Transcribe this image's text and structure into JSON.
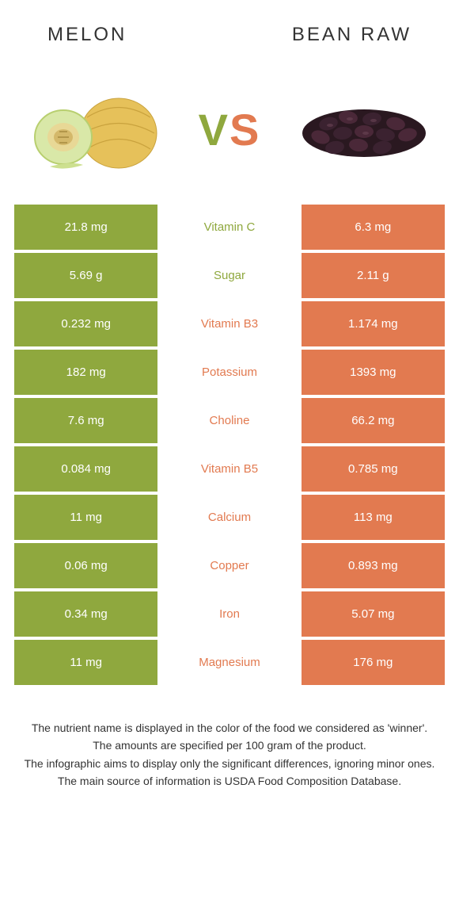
{
  "colors": {
    "left": "#8fa83e",
    "right": "#e27a50",
    "bg": "#ffffff",
    "text": "#333333"
  },
  "header": {
    "left_title": "Melon",
    "right_title": "Bean raw"
  },
  "vs": {
    "v": "V",
    "s": "S"
  },
  "rows": [
    {
      "left": "21.8 mg",
      "label": "Vitamin C",
      "right": "6.3 mg",
      "winner": "left"
    },
    {
      "left": "5.69 g",
      "label": "Sugar",
      "right": "2.11 g",
      "winner": "left"
    },
    {
      "left": "0.232 mg",
      "label": "Vitamin B3",
      "right": "1.174 mg",
      "winner": "right"
    },
    {
      "left": "182 mg",
      "label": "Potassium",
      "right": "1393 mg",
      "winner": "right"
    },
    {
      "left": "7.6 mg",
      "label": "Choline",
      "right": "66.2 mg",
      "winner": "right"
    },
    {
      "left": "0.084 mg",
      "label": "Vitamin B5",
      "right": "0.785 mg",
      "winner": "right"
    },
    {
      "left": "11 mg",
      "label": "Calcium",
      "right": "113 mg",
      "winner": "right"
    },
    {
      "left": "0.06 mg",
      "label": "Copper",
      "right": "0.893 mg",
      "winner": "right"
    },
    {
      "left": "0.34 mg",
      "label": "Iron",
      "right": "5.07 mg",
      "winner": "right"
    },
    {
      "left": "11 mg",
      "label": "Magnesium",
      "right": "176 mg",
      "winner": "right"
    }
  ],
  "notes": [
    "The nutrient name is displayed in the color of the food we considered as 'winner'.",
    "The amounts are specified per 100 gram of the product.",
    "The infographic aims to display only the significant differences, ignoring minor ones.",
    "The main source of information is USDA Food Composition Database."
  ]
}
